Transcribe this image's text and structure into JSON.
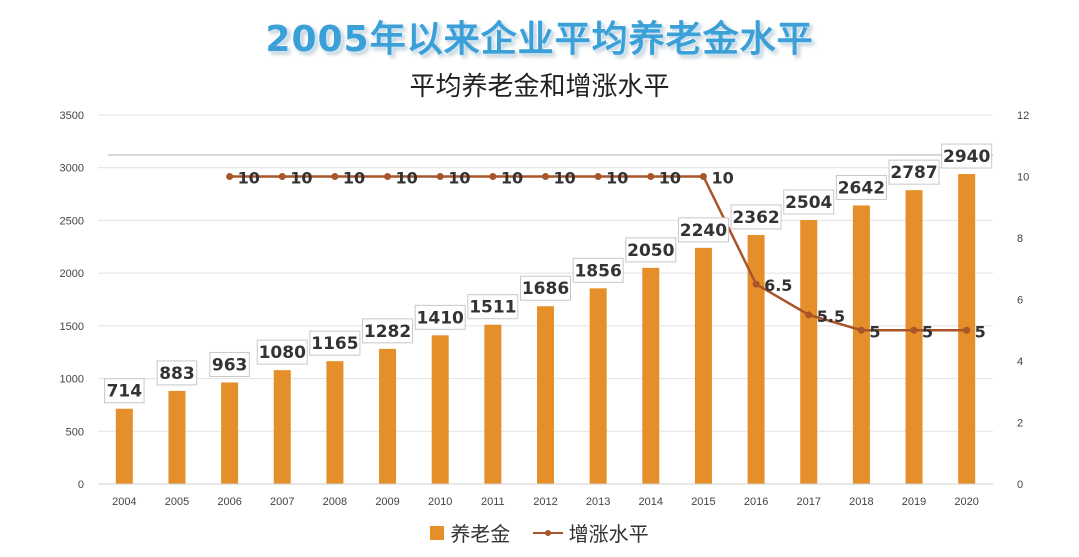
{
  "header": {
    "main_title": "2005年以来企业平均养老金水平",
    "chart_title": "平均养老金和增涨水平"
  },
  "colors": {
    "bar": "#e58f2a",
    "line": "#a8552a",
    "title": "#3b9fd8"
  },
  "chart_data": {
    "type": "bar",
    "categories": [
      "2004",
      "2005",
      "2006",
      "2007",
      "2008",
      "2009",
      "2010",
      "2011",
      "2012",
      "2013",
      "2014",
      "2015",
      "2016",
      "2017",
      "2018",
      "2019",
      "2020"
    ],
    "series": [
      {
        "name": "养老金",
        "type": "bar",
        "axis": "left",
        "values": [
          714,
          883,
          963,
          1080,
          1165,
          1282,
          1410,
          1511,
          1686,
          1856,
          2050,
          2240,
          2362,
          2504,
          2642,
          2787,
          2940
        ],
        "labels": [
          "714",
          "883",
          "963",
          "1080",
          "1165",
          "1282",
          "1410",
          "1511",
          "1686",
          "1856",
          "2050",
          "2240",
          "2362",
          "2504",
          "2642",
          "2787",
          "2940"
        ]
      },
      {
        "name": "增涨水平",
        "type": "line",
        "axis": "right",
        "values": [
          null,
          null,
          10,
          10,
          10,
          10,
          10,
          10,
          10,
          10,
          10,
          10,
          6.5,
          5.5,
          5,
          5,
          5
        ],
        "labels": [
          "",
          "",
          "10",
          "10",
          "10",
          "10",
          "10",
          "10",
          "10",
          "10",
          "10",
          "10",
          "6.5",
          "5.5",
          "5",
          "5",
          "5"
        ]
      }
    ],
    "y_left": {
      "ylim": [
        0,
        3500
      ],
      "ticks": [
        "0",
        "500",
        "1000",
        "1500",
        "2000",
        "2500",
        "3000",
        "3500"
      ]
    },
    "y_right": {
      "ylim": [
        0,
        12
      ],
      "ticks": [
        "0",
        "2",
        "4",
        "6",
        "8",
        "10",
        "12"
      ]
    },
    "grid": true,
    "legend_position": "bottom"
  }
}
